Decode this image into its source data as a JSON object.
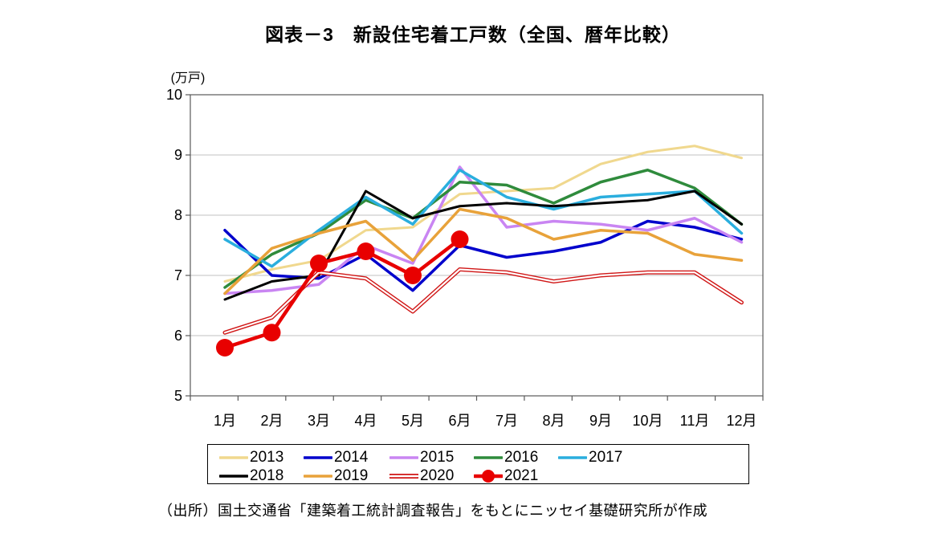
{
  "page": {
    "title": "図表－3　新設住宅着工戸数（全国、暦年比較）",
    "y_axis_unit_label": "(万戸)",
    "source_note": "（出所）国土交通省「建築着工統計調査報告」をもとにニッセイ基礎研究所が作成"
  },
  "chart_data": {
    "type": "line",
    "title": "新設住宅着工戸数（全国、暦年比較）",
    "categories": [
      "1月",
      "2月",
      "3月",
      "4月",
      "5月",
      "6月",
      "7月",
      "8月",
      "9月",
      "10月",
      "11月",
      "12月"
    ],
    "ylabel": "万戸",
    "ylim": [
      5,
      10
    ],
    "yticks": [
      5,
      6,
      7,
      8,
      9,
      10
    ],
    "grid": true,
    "legend_position": "bottom-box",
    "series": [
      {
        "name": "2013",
        "color": "#f0d88e",
        "style": "solid",
        "width": 3,
        "values": [
          6.9,
          7.1,
          7.25,
          7.75,
          7.8,
          8.35,
          8.4,
          8.45,
          8.85,
          9.05,
          9.15,
          8.95
        ]
      },
      {
        "name": "2014",
        "color": "#0000cc",
        "style": "solid",
        "width": 3.5,
        "values": [
          7.75,
          7.0,
          6.95,
          7.35,
          6.75,
          7.5,
          7.3,
          7.4,
          7.55,
          7.9,
          7.8,
          7.6
        ]
      },
      {
        "name": "2015",
        "color": "#c985f2",
        "style": "solid",
        "width": 3.5,
        "values": [
          6.7,
          6.75,
          6.85,
          7.5,
          7.2,
          8.8,
          7.8,
          7.9,
          7.85,
          7.75,
          7.95,
          7.55
        ]
      },
      {
        "name": "2016",
        "color": "#2f8b3c",
        "style": "solid",
        "width": 3.5,
        "values": [
          6.8,
          7.35,
          7.7,
          8.25,
          7.95,
          8.55,
          8.5,
          8.2,
          8.55,
          8.75,
          8.45,
          7.85
        ]
      },
      {
        "name": "2017",
        "color": "#2aaede",
        "style": "solid",
        "width": 3.5,
        "values": [
          7.6,
          7.15,
          7.75,
          8.3,
          7.85,
          8.75,
          8.3,
          8.1,
          8.3,
          8.35,
          8.4,
          7.7
        ]
      },
      {
        "name": "2018",
        "color": "#000000",
        "style": "solid",
        "width": 3,
        "values": [
          6.6,
          6.9,
          7.0,
          8.4,
          7.95,
          8.15,
          8.2,
          8.15,
          8.2,
          8.25,
          8.4,
          7.85
        ]
      },
      {
        "name": "2019",
        "color": "#e8a23a",
        "style": "solid",
        "width": 3.5,
        "values": [
          6.7,
          7.45,
          7.7,
          7.9,
          7.25,
          8.1,
          7.95,
          7.6,
          7.75,
          7.7,
          7.35,
          7.25
        ]
      },
      {
        "name": "2020",
        "color": "#d01616",
        "style": "double",
        "width": 5,
        "values": [
          6.05,
          6.3,
          7.05,
          6.95,
          6.4,
          7.1,
          7.05,
          6.9,
          7.0,
          7.05,
          7.05,
          6.55
        ]
      },
      {
        "name": "2021",
        "color": "#e80000",
        "style": "marker",
        "width": 4.5,
        "values": [
          5.8,
          6.05,
          7.2,
          7.4,
          7.0,
          7.6
        ]
      }
    ]
  }
}
